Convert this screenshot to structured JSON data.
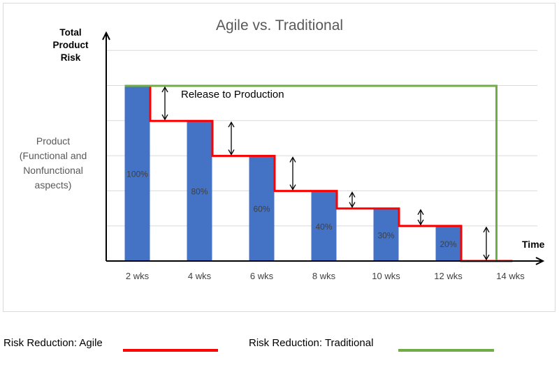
{
  "chart_data": {
    "type": "bar",
    "title": "Agile vs. Traditional",
    "ylabel": [
      "Total",
      "Product",
      "Risk"
    ],
    "xlabel": "Time",
    "left_note": [
      "Product",
      "(Functional and",
      "Nonfunctional",
      "aspects)"
    ],
    "annotation": "Release to Production",
    "categories": [
      "2 wks",
      "4 wks",
      "6 wks",
      "8 wks",
      "10 wks",
      "12 wks",
      "14 wks"
    ],
    "ylim": [
      0,
      100
    ],
    "grid": true,
    "series": [
      {
        "values": [
          100,
          80,
          60,
          40,
          30,
          20,
          null
        ],
        "labels": [
          "100%",
          "80%",
          "60%",
          "40%",
          "30%",
          "20%",
          ""
        ]
      }
    ],
    "agile_risk_line": [
      100,
      80,
      60,
      40,
      30,
      20,
      0
    ],
    "traditional_risk_line": [
      100,
      100,
      100,
      100,
      100,
      100,
      0
    ],
    "colors": {
      "bar": "#4472c4",
      "agile": "#ff0000",
      "traditional": "#70ad47",
      "grid": "#d9d9d9",
      "title": "#595959"
    }
  },
  "legend": {
    "agile_label": "Risk Reduction: Agile",
    "traditional_label": "Risk Reduction: Traditional"
  }
}
